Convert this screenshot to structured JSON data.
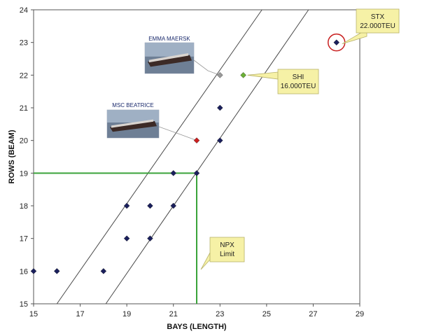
{
  "chart_data": {
    "type": "scatter",
    "xlabel": "BAYS (LENGTH)",
    "ylabel": "ROWS (BEAM)",
    "xlim": [
      15,
      29
    ],
    "ylim": [
      15,
      24
    ],
    "xticks": [
      15,
      17,
      19,
      21,
      23,
      25,
      27,
      29
    ],
    "yticks": [
      15,
      16,
      17,
      18,
      19,
      20,
      21,
      22,
      23,
      24
    ],
    "grid": false,
    "points": [
      {
        "x": 15,
        "y": 16,
        "color": "#1a1f5c"
      },
      {
        "x": 16,
        "y": 16,
        "color": "#1a1f5c"
      },
      {
        "x": 18,
        "y": 16,
        "color": "#1a1f5c"
      },
      {
        "x": 19,
        "y": 17,
        "color": "#1a1f5c"
      },
      {
        "x": 20,
        "y": 17,
        "color": "#1a1f5c"
      },
      {
        "x": 19,
        "y": 18,
        "color": "#1a1f5c"
      },
      {
        "x": 20,
        "y": 18,
        "color": "#1a1f5c"
      },
      {
        "x": 21,
        "y": 18,
        "color": "#1a1f5c"
      },
      {
        "x": 21,
        "y": 19,
        "color": "#1a1f5c"
      },
      {
        "x": 22,
        "y": 19,
        "color": "#1a1f5c"
      },
      {
        "x": 23,
        "y": 20,
        "color": "#1a1f5c"
      },
      {
        "x": 23,
        "y": 21,
        "color": "#1a1f5c"
      },
      {
        "x": 22,
        "y": 20,
        "color": "#cc1f1f"
      },
      {
        "x": 23,
        "y": 22,
        "color": "#9a9a9a"
      },
      {
        "x": 24,
        "y": 22,
        "color": "#6ab034"
      },
      {
        "x": 28,
        "y": 23,
        "color": "#1a1f5c"
      }
    ],
    "trend_lines": [
      {
        "from": [
          16,
          15
        ],
        "to": [
          24.8,
          24
        ]
      },
      {
        "from": [
          18.1,
          15
        ],
        "to": [
          26.8,
          24
        ]
      }
    ],
    "npx_limit": {
      "x": 22,
      "y": 19
    },
    "circled_point": {
      "x": 28,
      "y": 23
    },
    "annotations": [
      {
        "id": "stx",
        "lines": [
          "STX",
          "22.000TEU"
        ],
        "target": {
          "x": 28,
          "y": 23
        }
      },
      {
        "id": "shi",
        "lines": [
          "SHI",
          "16.000TEU"
        ],
        "target": {
          "x": 24,
          "y": 22
        }
      },
      {
        "id": "npx",
        "lines": [
          "NPX",
          "Limit"
        ],
        "target": {
          "x": 22,
          "y": 16
        }
      }
    ],
    "ship_labels": [
      {
        "id": "emma",
        "text": "EMMA MAERSK",
        "target": {
          "x": 23,
          "y": 22
        }
      },
      {
        "id": "msc",
        "text": "MSC BEATRICE",
        "target": {
          "x": 22,
          "y": 20
        }
      }
    ]
  }
}
